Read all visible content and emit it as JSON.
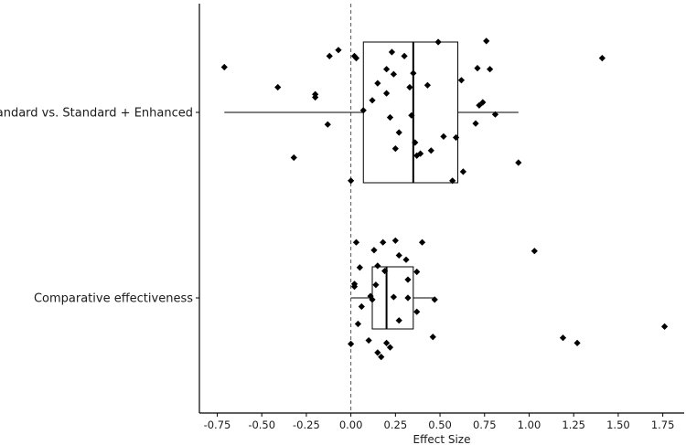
{
  "chart_data": {
    "type": "box",
    "xlabel": "Effect Size",
    "xlim": [
      -0.85,
      1.87
    ],
    "x_ticks": [
      -0.75,
      -0.5,
      -0.25,
      0.0,
      0.25,
      0.5,
      0.75,
      1.0,
      1.25,
      1.5,
      1.75
    ],
    "x_tick_labels": [
      "-0.75",
      "-0.50",
      "-0.25",
      "0.00",
      "0.25",
      "0.50",
      "0.75",
      "1.00",
      "1.25",
      "1.50",
      "1.75"
    ],
    "reference_line": 0.0,
    "grid": false,
    "categories": [
      "Standard vs. Standard + Enhanced",
      "Comparative effectiveness"
    ],
    "boxes": [
      {
        "category": "Standard vs. Standard + Enhanced",
        "whisker_low": -0.71,
        "q1": 0.07,
        "median": 0.35,
        "q3": 0.6,
        "whisker_high": 0.94
      },
      {
        "category": "Comparative effectiveness",
        "whisker_low": 0.0,
        "q1": 0.12,
        "median": 0.2,
        "q3": 0.35,
        "whisker_high": 0.47
      }
    ],
    "points": [
      {
        "category": "Standard vs. Standard + Enhanced",
        "values": [
          {
            "x": -0.71,
            "jitter": 0.45
          },
          {
            "x": -0.41,
            "jitter": 0.25
          },
          {
            "x": -0.32,
            "jitter": -0.45
          },
          {
            "x": -0.2,
            "jitter": 0.18
          },
          {
            "x": -0.2,
            "jitter": 0.15
          },
          {
            "x": -0.13,
            "jitter": -0.12
          },
          {
            "x": -0.12,
            "jitter": 0.56
          },
          {
            "x": -0.07,
            "jitter": 0.62
          },
          {
            "x": 0.0,
            "jitter": -0.68
          },
          {
            "x": 0.02,
            "jitter": 0.56
          },
          {
            "x": 0.03,
            "jitter": 0.54
          },
          {
            "x": 0.07,
            "jitter": 0.02
          },
          {
            "x": 0.12,
            "jitter": 0.12
          },
          {
            "x": 0.15,
            "jitter": 0.29
          },
          {
            "x": 0.2,
            "jitter": 0.43
          },
          {
            "x": 0.2,
            "jitter": 0.19
          },
          {
            "x": 0.22,
            "jitter": -0.05
          },
          {
            "x": 0.23,
            "jitter": 0.6
          },
          {
            "x": 0.24,
            "jitter": 0.38
          },
          {
            "x": 0.25,
            "jitter": -0.36
          },
          {
            "x": 0.27,
            "jitter": -0.2
          },
          {
            "x": 0.3,
            "jitter": 0.56
          },
          {
            "x": 0.33,
            "jitter": 0.25
          },
          {
            "x": 0.34,
            "jitter": -0.03
          },
          {
            "x": 0.35,
            "jitter": 0.39
          },
          {
            "x": 0.36,
            "jitter": -0.3
          },
          {
            "x": 0.37,
            "jitter": -0.43
          },
          {
            "x": 0.39,
            "jitter": -0.41
          },
          {
            "x": 0.43,
            "jitter": 0.27
          },
          {
            "x": 0.45,
            "jitter": -0.38
          },
          {
            "x": 0.49,
            "jitter": 0.7
          },
          {
            "x": 0.52,
            "jitter": -0.24
          },
          {
            "x": 0.57,
            "jitter": -0.68
          },
          {
            "x": 0.59,
            "jitter": -0.25
          },
          {
            "x": 0.62,
            "jitter": 0.32
          },
          {
            "x": 0.63,
            "jitter": -0.59
          },
          {
            "x": 0.7,
            "jitter": -0.11
          },
          {
            "x": 0.71,
            "jitter": 0.44
          },
          {
            "x": 0.72,
            "jitter": 0.07
          },
          {
            "x": 0.74,
            "jitter": 0.1
          },
          {
            "x": 0.76,
            "jitter": 0.71
          },
          {
            "x": 0.78,
            "jitter": 0.43
          },
          {
            "x": 0.81,
            "jitter": -0.02
          },
          {
            "x": 0.94,
            "jitter": -0.5
          },
          {
            "x": 1.41,
            "jitter": 0.54
          }
        ]
      },
      {
        "category": "Comparative effectiveness",
        "values": [
          {
            "x": 0.0,
            "jitter": -0.53
          },
          {
            "x": 0.02,
            "jitter": 0.16
          },
          {
            "x": 0.02,
            "jitter": 0.13
          },
          {
            "x": 0.03,
            "jitter": 0.64
          },
          {
            "x": 0.04,
            "jitter": -0.3
          },
          {
            "x": 0.05,
            "jitter": 0.35
          },
          {
            "x": 0.06,
            "jitter": -0.1
          },
          {
            "x": 0.1,
            "jitter": -0.49
          },
          {
            "x": 0.11,
            "jitter": 0.02
          },
          {
            "x": 0.12,
            "jitter": -0.02
          },
          {
            "x": 0.13,
            "jitter": 0.55
          },
          {
            "x": 0.14,
            "jitter": 0.15
          },
          {
            "x": 0.15,
            "jitter": -0.63
          },
          {
            "x": 0.15,
            "jitter": 0.37
          },
          {
            "x": 0.17,
            "jitter": -0.68
          },
          {
            "x": 0.18,
            "jitter": 0.64
          },
          {
            "x": 0.19,
            "jitter": 0.31
          },
          {
            "x": 0.2,
            "jitter": -0.52
          },
          {
            "x": 0.22,
            "jitter": -0.57
          },
          {
            "x": 0.24,
            "jitter": 0.01
          },
          {
            "x": 0.25,
            "jitter": 0.66
          },
          {
            "x": 0.27,
            "jitter": -0.26
          },
          {
            "x": 0.27,
            "jitter": 0.49
          },
          {
            "x": 0.31,
            "jitter": 0.44
          },
          {
            "x": 0.32,
            "jitter": 0.21
          },
          {
            "x": 0.32,
            "jitter": 0.0
          },
          {
            "x": 0.37,
            "jitter": 0.3
          },
          {
            "x": 0.37,
            "jitter": -0.16
          },
          {
            "x": 0.4,
            "jitter": 0.64
          },
          {
            "x": 0.46,
            "jitter": -0.45
          },
          {
            "x": 0.47,
            "jitter": -0.02
          },
          {
            "x": 1.03,
            "jitter": 0.54
          },
          {
            "x": 1.19,
            "jitter": -0.46
          },
          {
            "x": 1.27,
            "jitter": -0.52
          },
          {
            "x": 1.76,
            "jitter": -0.33
          }
        ]
      }
    ]
  }
}
